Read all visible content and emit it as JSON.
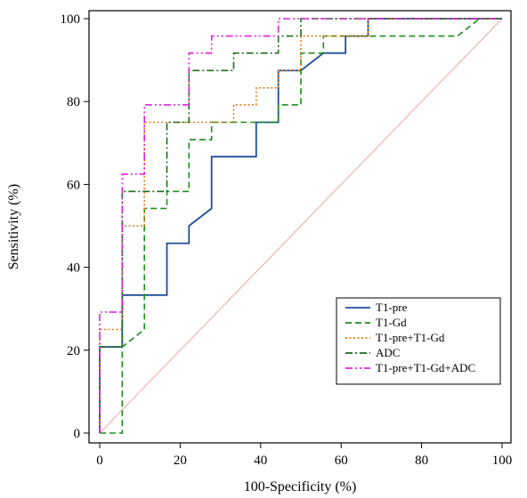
{
  "chart_data": {
    "type": "line",
    "xlabel": "100-Specificity (%)",
    "ylabel": "Sensitivity (%)",
    "xlim": [
      0,
      100
    ],
    "ylim": [
      0,
      100
    ],
    "xticks": [
      0,
      20,
      40,
      60,
      80,
      100
    ],
    "yticks": [
      0,
      20,
      40,
      60,
      80,
      100
    ],
    "grid": false,
    "legend_position": "bottom-right",
    "reference_line": {
      "x": [
        0,
        100
      ],
      "y": [
        0,
        100
      ],
      "color": "#e8a8a8"
    },
    "series": [
      {
        "name": "T1-pre",
        "color": "#1f4e9a",
        "style": "solid",
        "points": [
          [
            0,
            0
          ],
          [
            0,
            20.8
          ],
          [
            5.6,
            20.8
          ],
          [
            5.6,
            33.3
          ],
          [
            16.7,
            33.3
          ],
          [
            16.7,
            45.8
          ],
          [
            22.2,
            45.8
          ],
          [
            22.2,
            50
          ],
          [
            27.8,
            54.2
          ],
          [
            27.8,
            66.7
          ],
          [
            38.9,
            66.7
          ],
          [
            38.9,
            75
          ],
          [
            44.4,
            75
          ],
          [
            44.4,
            87.5
          ],
          [
            50,
            87.5
          ],
          [
            50,
            87.5
          ],
          [
            55.6,
            91.7
          ],
          [
            61.1,
            91.7
          ],
          [
            61.1,
            95.8
          ],
          [
            66.7,
            95.8
          ],
          [
            66.7,
            100
          ],
          [
            100,
            100
          ]
        ]
      },
      {
        "name": "T1-Gd",
        "color": "#1a8f1a",
        "style": "dashed",
        "points": [
          [
            0,
            0
          ],
          [
            5.6,
            0
          ],
          [
            5.6,
            20.8
          ],
          [
            11.1,
            25
          ],
          [
            11.1,
            54.2
          ],
          [
            16.7,
            54.2
          ],
          [
            16.7,
            58.3
          ],
          [
            22.2,
            58.3
          ],
          [
            22.2,
            70.8
          ],
          [
            27.8,
            70.8
          ],
          [
            27.8,
            75
          ],
          [
            44.4,
            75
          ],
          [
            44.4,
            79.2
          ],
          [
            50,
            79.2
          ],
          [
            50,
            91.7
          ],
          [
            55.6,
            91.7
          ],
          [
            55.6,
            95.8
          ],
          [
            88.9,
            95.8
          ],
          [
            94.4,
            100
          ],
          [
            100,
            100
          ]
        ]
      },
      {
        "name": "T1-pre+T1-Gd",
        "color": "#e87a1a",
        "style": "dotted",
        "points": [
          [
            0,
            0
          ],
          [
            0,
            25
          ],
          [
            5.6,
            25
          ],
          [
            5.6,
            50
          ],
          [
            11.1,
            50
          ],
          [
            11.1,
            75
          ],
          [
            22.2,
            75
          ],
          [
            33.3,
            75
          ],
          [
            33.3,
            79.2
          ],
          [
            38.9,
            79.2
          ],
          [
            38.9,
            83.3
          ],
          [
            44.4,
            83.3
          ],
          [
            44.4,
            87.5
          ],
          [
            50,
            87.5
          ],
          [
            50,
            95.8
          ],
          [
            66.7,
            95.8
          ],
          [
            66.7,
            100
          ],
          [
            100,
            100
          ]
        ]
      },
      {
        "name": "ADC",
        "color": "#1a6e1a",
        "style": "dashdot",
        "points": [
          [
            0,
            0
          ],
          [
            0,
            20.8
          ],
          [
            5.6,
            20.8
          ],
          [
            5.6,
            58.3
          ],
          [
            16.7,
            58.3
          ],
          [
            16.7,
            75
          ],
          [
            22.2,
            75
          ],
          [
            22.2,
            87.5
          ],
          [
            33.3,
            87.5
          ],
          [
            33.3,
            91.7
          ],
          [
            44.4,
            91.7
          ],
          [
            44.4,
            95.8
          ],
          [
            50,
            95.8
          ],
          [
            50,
            100
          ],
          [
            100,
            100
          ]
        ]
      },
      {
        "name": "T1-pre+T1-Gd+ADC",
        "color": "#e020e0",
        "style": "dashdotdot",
        "points": [
          [
            0,
            0
          ],
          [
            0,
            29.2
          ],
          [
            5.6,
            29.2
          ],
          [
            5.6,
            62.5
          ],
          [
            11.1,
            62.5
          ],
          [
            11.1,
            79.2
          ],
          [
            22.2,
            79.2
          ],
          [
            22.2,
            91.7
          ],
          [
            27.8,
            91.7
          ],
          [
            27.8,
            95.8
          ],
          [
            44.4,
            95.8
          ],
          [
            44.4,
            100
          ],
          [
            100,
            100
          ]
        ]
      }
    ]
  }
}
